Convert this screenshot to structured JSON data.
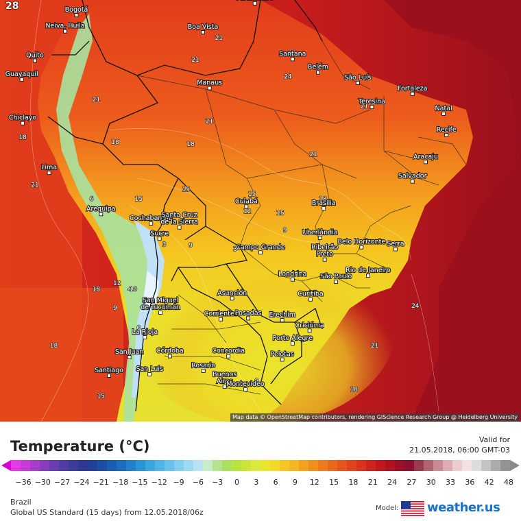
{
  "map": {
    "corner_number": "28",
    "attribution": "Map data © OpenStreetMap contributors, rendering GIScience Research Group @ Heidelberg University",
    "cities": [
      {
        "name": "Paramaribo",
        "lon": -55.2,
        "lat": 5.85
      },
      {
        "name": "Bogotá",
        "lon": -74.1,
        "lat": 4.6
      },
      {
        "name": "Neiva, Huila",
        "lon": -75.3,
        "lat": 2.9
      },
      {
        "name": "Boa Vista",
        "lon": -60.7,
        "lat": 2.8
      },
      {
        "name": "Quito",
        "lon": -78.5,
        "lat": -0.2
      },
      {
        "name": "Santana",
        "lon": -51.2,
        "lat": -0.05
      },
      {
        "name": "Guayaquil",
        "lon": -79.9,
        "lat": -2.2
      },
      {
        "name": "Belém",
        "lon": -48.5,
        "lat": -1.45
      },
      {
        "name": "São Luís",
        "lon": -44.3,
        "lat": -2.55
      },
      {
        "name": "Manaus",
        "lon": -60.0,
        "lat": -3.1
      },
      {
        "name": "Fortaleza",
        "lon": -38.5,
        "lat": -3.7
      },
      {
        "name": "Teresina",
        "lon": -42.8,
        "lat": -5.1
      },
      {
        "name": "Natal",
        "lon": -35.2,
        "lat": -5.8
      },
      {
        "name": "Chiclayo",
        "lon": -79.8,
        "lat": -6.8
      },
      {
        "name": "Recife",
        "lon": -34.9,
        "lat": -8.05
      },
      {
        "name": "Aracaju",
        "lon": -37.1,
        "lat": -10.9
      },
      {
        "name": "Lima",
        "lon": -77.0,
        "lat": -12.05
      },
      {
        "name": "Salvador",
        "lon": -38.5,
        "lat": -12.95
      },
      {
        "name": "Cuiabá",
        "lon": -56.1,
        "lat": -15.6
      },
      {
        "name": "Brasília",
        "lon": -47.9,
        "lat": -15.8
      },
      {
        "name": "Arequipa",
        "lon": -71.5,
        "lat": -16.4
      },
      {
        "name": "Cochabamba",
        "lon": -66.2,
        "lat": -17.4
      },
      {
        "name": "Santa Cruz\nde la Sierra",
        "lon": -63.2,
        "lat": -17.8
      },
      {
        "name": "Sucre",
        "lon": -65.3,
        "lat": -19.0
      },
      {
        "name": "Uberlândia",
        "lon": -48.3,
        "lat": -18.9
      },
      {
        "name": "Belo Horizonte",
        "lon": -43.9,
        "lat": -19.9
      },
      {
        "name": "Serra",
        "lon": -40.3,
        "lat": -20.1
      },
      {
        "name": "Campo Grande",
        "lon": -54.6,
        "lat": -20.45
      },
      {
        "name": "Ribeirão\nPreto",
        "lon": -47.8,
        "lat": -21.2
      },
      {
        "name": "Rio de Janeiro",
        "lon": -43.2,
        "lat": -22.9
      },
      {
        "name": "Londrina",
        "lon": -51.2,
        "lat": -23.3
      },
      {
        "name": "São Paulo",
        "lon": -46.6,
        "lat": -23.55
      },
      {
        "name": "Asunción",
        "lon": -57.6,
        "lat": -25.3
      },
      {
        "name": "Curitiba",
        "lon": -49.3,
        "lat": -25.4
      },
      {
        "name": "San Miguel\nde Tucumán",
        "lon": -65.2,
        "lat": -26.8
      },
      {
        "name": "Corrientes",
        "lon": -58.8,
        "lat": -27.5
      },
      {
        "name": "Posadas",
        "lon": -55.9,
        "lat": -27.4
      },
      {
        "name": "Criciúma",
        "lon": -49.4,
        "lat": -28.7
      },
      {
        "name": "Erechim",
        "lon": -52.3,
        "lat": -27.6
      },
      {
        "name": "La Rioja",
        "lon": -66.85,
        "lat": -29.4
      },
      {
        "name": "Porto Alegre",
        "lon": -51.2,
        "lat": -30.05
      },
      {
        "name": "San Juan",
        "lon": -68.5,
        "lat": -31.5
      },
      {
        "name": "Córdoba",
        "lon": -64.2,
        "lat": -31.4
      },
      {
        "name": "Concordia",
        "lon": -58.0,
        "lat": -31.4
      },
      {
        "name": "Pelotas",
        "lon": -52.3,
        "lat": -31.75
      },
      {
        "name": "Santiago",
        "lon": -70.65,
        "lat": -33.45
      },
      {
        "name": "San Luis",
        "lon": -66.35,
        "lat": -33.3
      },
      {
        "name": "Rosario",
        "lon": -60.65,
        "lat": -32.95
      },
      {
        "name": "Buenos\nAires",
        "lon": -58.4,
        "lat": -34.6
      },
      {
        "name": "Montevideo",
        "lon": -56.2,
        "lat": -34.9
      }
    ],
    "isotherm_labels": [
      {
        "text": "21",
        "lon": -78.5,
        "lat": -13.5
      },
      {
        "text": "18",
        "lon": -79.8,
        "lat": -8.5
      },
      {
        "text": "21",
        "lon": -61.5,
        "lat": -0.3
      },
      {
        "text": "21",
        "lon": -72.0,
        "lat": -4.5
      },
      {
        "text": "21",
        "lon": -60.0,
        "lat": -6.8
      },
      {
        "text": "18",
        "lon": -70.0,
        "lat": -9.0
      },
      {
        "text": "18",
        "lon": -62.0,
        "lat": -9.2
      },
      {
        "text": "21",
        "lon": -49.0,
        "lat": -10.3
      },
      {
        "text": "15",
        "lon": -67.5,
        "lat": -15.0
      },
      {
        "text": "15",
        "lon": -62.5,
        "lat": -14.0
      },
      {
        "text": "15",
        "lon": -55.5,
        "lat": -14.5
      },
      {
        "text": "15",
        "lon": -52.5,
        "lat": -16.5
      },
      {
        "text": "12",
        "lon": -56.0,
        "lat": -16.3
      },
      {
        "text": "9",
        "lon": -52.0,
        "lat": -18.3
      },
      {
        "text": "18",
        "lon": -48.0,
        "lat": -15.0
      },
      {
        "text": "9",
        "lon": -62.0,
        "lat": -19.9
      },
      {
        "text": "3",
        "lon": -64.8,
        "lat": -19.8
      },
      {
        "text": "6",
        "lon": -72.5,
        "lat": -15.0
      },
      {
        "text": "12",
        "lon": -69.8,
        "lat": -23.9
      },
      {
        "text": "18",
        "lon": -72.0,
        "lat": -24.5
      },
      {
        "text": "-10",
        "lon": -68.2,
        "lat": -24.5
      },
      {
        "text": "9",
        "lon": -70.0,
        "lat": -26.5
      },
      {
        "text": "0",
        "lon": -67.5,
        "lat": -28.6
      },
      {
        "text": "18",
        "lon": -76.5,
        "lat": -30.5
      },
      {
        "text": "15",
        "lon": -71.5,
        "lat": -35.8
      },
      {
        "text": "3",
        "lon": -57.3,
        "lat": -20.3
      },
      {
        "text": "9",
        "lon": -55.0,
        "lat": -34.2
      },
      {
        "text": "24",
        "lon": -38.2,
        "lat": -26.3
      },
      {
        "text": "21",
        "lon": -42.5,
        "lat": -30.5
      },
      {
        "text": "18",
        "lon": -44.7,
        "lat": -35.1
      },
      {
        "text": "24",
        "lon": -51.7,
        "lat": -2.1
      },
      {
        "text": "21",
        "lon": -51.2,
        "lat": 0.4
      },
      {
        "text": "21",
        "lon": -43.6,
        "lat": -5.2
      },
      {
        "text": "21",
        "lon": -59.0,
        "lat": 2.0
      }
    ]
  },
  "legend": {
    "title": "Temperature (°C)",
    "valid_label": "Valid for",
    "valid_time": "21.05.2018, 06:00 GMT-03",
    "ticks": [
      "-36",
      "-30",
      "-27",
      "-24",
      "-21",
      "-18",
      "-15",
      "-12",
      "-9",
      "-6",
      "-3",
      "0",
      "3",
      "6",
      "9",
      "12",
      "15",
      "18",
      "21",
      "24",
      "27",
      "30",
      "33",
      "36",
      "42",
      "48"
    ],
    "region": "Brazil",
    "model_run": "Global US Standard (15 days) from 12.05.2018/06z",
    "model_label": "Model:",
    "brand": "weather.us"
  },
  "colors": {
    "ocean_warm": "#a8141b",
    "ocean_mid": "#e2321c",
    "land_hot": "#e84a1c",
    "land_warm": "#f28a1e",
    "land_mild": "#f7bf1f",
    "land_cool": "#efe528",
    "cold": "#9fd0f5",
    "coldest": "#d9eefc"
  }
}
